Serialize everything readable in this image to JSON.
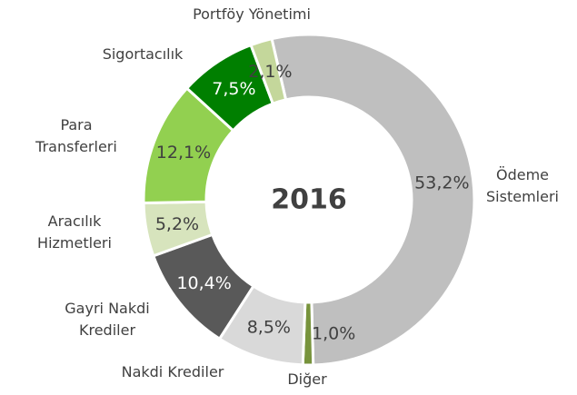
{
  "chart_data": {
    "type": "donut",
    "title": "2016",
    "categories": [
      "Ödeme Sistemleri",
      "Diğer",
      "Nakdi Krediler",
      "Gayri Nakdi Krediler",
      "Aracılık Hizmetleri",
      "Para Transferleri",
      "Sigortacılık",
      "Portföy Yönetimi"
    ],
    "values": [
      53.2,
      1.0,
      8.5,
      10.4,
      5.2,
      12.1,
      7.5,
      2.1
    ],
    "value_labels": [
      "53,2%",
      "1,0%",
      "8,5%",
      "10,4%",
      "5,2%",
      "12,1%",
      "7,5%",
      "2,1%"
    ],
    "colors": [
      "#bfbfbf",
      "#77933c",
      "#d9d9d9",
      "#595959",
      "#d7e4bd",
      "#92d050",
      "#007f00",
      "#c4d79b"
    ]
  }
}
